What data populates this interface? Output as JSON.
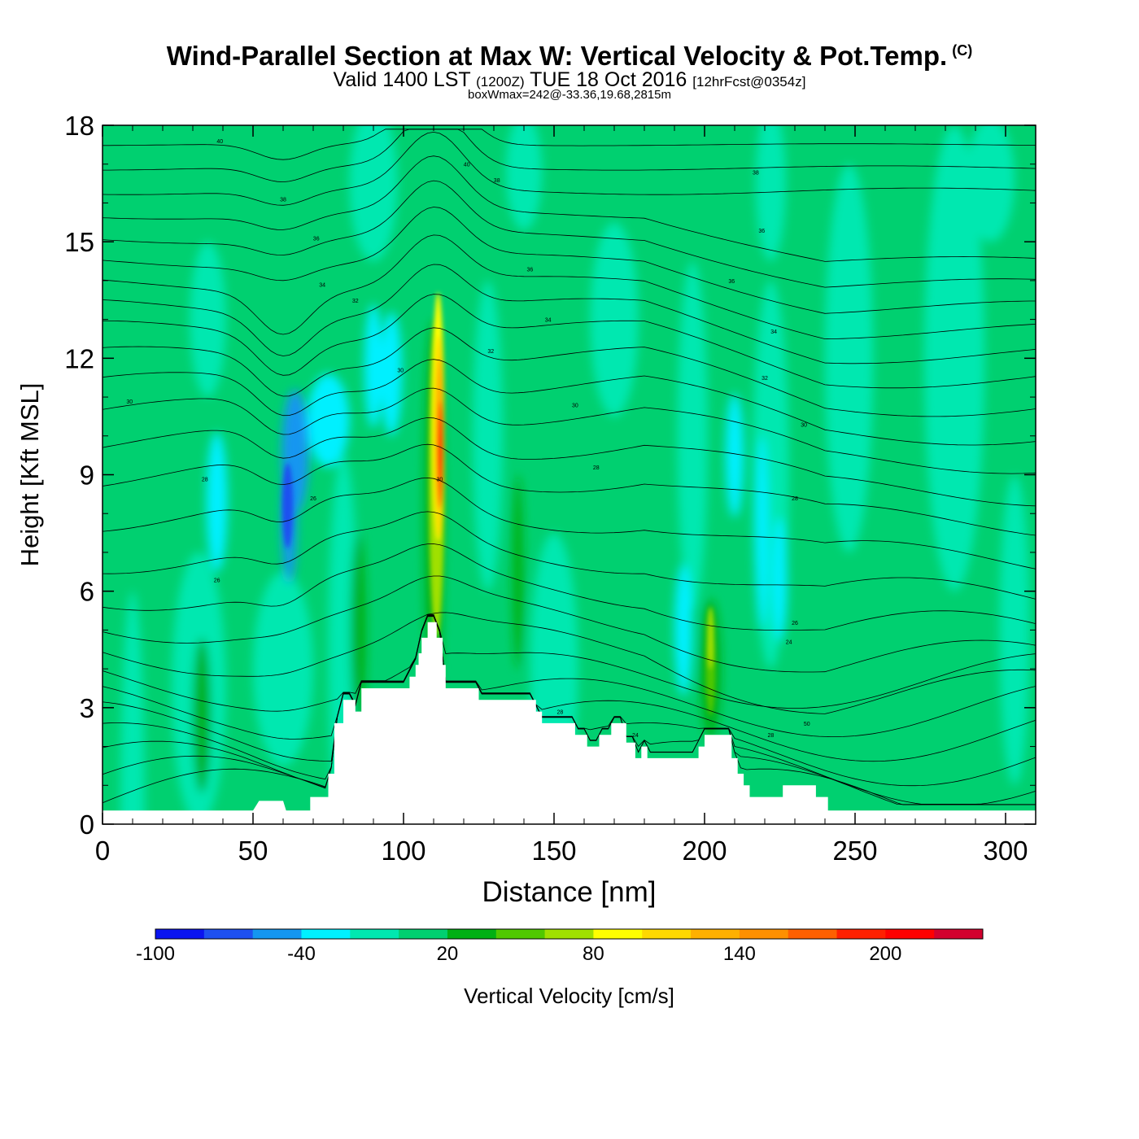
{
  "header": {
    "title": "Wind-Parallel Section at Max W: Vertical Velocity & Pot.Temp.",
    "copyright_mark": "(C)",
    "valid_prefix": "Valid 1400 LST",
    "valid_utc": "(1200Z)",
    "valid_date": "TUE 18 Oct 2016",
    "forecast_info": "[12hrFcst@0354z]",
    "box_info": "boxWmax=242@-33.36,19.68,2815m"
  },
  "chart_data": {
    "type": "heatmap",
    "title": "Wind-Parallel Section at Max W: Vertical Velocity & Pot.Temp.",
    "xlabel": "Distance [nm]",
    "ylabel": "Height [Kft MSL]",
    "xlim": [
      0,
      310
    ],
    "ylim": [
      0,
      18
    ],
    "xticks": [
      0,
      50,
      100,
      150,
      200,
      250,
      300
    ],
    "yticks": [
      0,
      3,
      6,
      9,
      12,
      15,
      18
    ],
    "colorbar": {
      "label": "Vertical Velocity [cm/s]",
      "min": -100,
      "step": 20,
      "colors": [
        "#0a14f0",
        "#1e50f0",
        "#1496f0",
        "#00f0ff",
        "#00e8b0",
        "#00d070",
        "#00b014",
        "#50c800",
        "#a0e000",
        "#ffff00",
        "#ffd800",
        "#ffb000",
        "#ff9000",
        "#ff6000",
        "#ff2000",
        "#ff0000",
        "#d2002e"
      ],
      "tick_labels": [
        "-100",
        "-40",
        "20",
        "80",
        "140",
        "200"
      ],
      "tick_values": [
        -100,
        -40,
        20,
        80,
        140,
        200
      ]
    },
    "max_w": 242,
    "max_w_location": "-33.36,19.68,2815m",
    "terrain_height_kft": [
      [
        0,
        0.35
      ],
      [
        50,
        0.35
      ],
      [
        52,
        0.6
      ],
      [
        60,
        0.6
      ],
      [
        61,
        0.35
      ],
      [
        69,
        0.35
      ],
      [
        69,
        0.7
      ],
      [
        75,
        0.7
      ],
      [
        75,
        1.3
      ],
      [
        77,
        1.3
      ],
      [
        77,
        2.6
      ],
      [
        80,
        2.6
      ],
      [
        80,
        3.2
      ],
      [
        84,
        3.2
      ],
      [
        84,
        2.9
      ],
      [
        86,
        2.9
      ],
      [
        86,
        3.5
      ],
      [
        102,
        3.5
      ],
      [
        102,
        3.8
      ],
      [
        104,
        3.8
      ],
      [
        104,
        4.1
      ],
      [
        105,
        4.1
      ],
      [
        105,
        4.4
      ],
      [
        106,
        4.4
      ],
      [
        106,
        4.8
      ],
      [
        108,
        4.8
      ],
      [
        108,
        5.2
      ],
      [
        111,
        5.2
      ],
      [
        111,
        4.8
      ],
      [
        113,
        4.8
      ],
      [
        113,
        4.1
      ],
      [
        114,
        4.1
      ],
      [
        114,
        3.5
      ],
      [
        125,
        3.5
      ],
      [
        125,
        3.2
      ],
      [
        144,
        3.2
      ],
      [
        144,
        2.9
      ],
      [
        146,
        2.9
      ],
      [
        146,
        2.6
      ],
      [
        157,
        2.6
      ],
      [
        157,
        2.3
      ],
      [
        161,
        2.3
      ],
      [
        161,
        2.0
      ],
      [
        165,
        2.0
      ],
      [
        165,
        2.3
      ],
      [
        169,
        2.3
      ],
      [
        169,
        2.6
      ],
      [
        174,
        2.6
      ],
      [
        174,
        2.1
      ],
      [
        177,
        2.1
      ],
      [
        177,
        1.7
      ],
      [
        179,
        1.7
      ],
      [
        179,
        2.0
      ],
      [
        181,
        2.0
      ],
      [
        181,
        1.7
      ],
      [
        198,
        1.7
      ],
      [
        198,
        2.0
      ],
      [
        200,
        2.0
      ],
      [
        200,
        2.3
      ],
      [
        209,
        2.3
      ],
      [
        209,
        1.7
      ],
      [
        211,
        1.7
      ],
      [
        211,
        1.3
      ],
      [
        213,
        1.3
      ],
      [
        213,
        1.0
      ],
      [
        215,
        1.0
      ],
      [
        215,
        0.7
      ],
      [
        226,
        0.7
      ],
      [
        226,
        1.0
      ],
      [
        237,
        1.0
      ],
      [
        237,
        0.7
      ],
      [
        241,
        0.7
      ],
      [
        241,
        0.35
      ],
      [
        310,
        0.35
      ]
    ],
    "isentrope_labels": [
      {
        "x": 39,
        "y": 17.6,
        "text": "40"
      },
      {
        "x": 121,
        "y": 17.0,
        "text": "40"
      },
      {
        "x": 131,
        "y": 16.6,
        "text": "38"
      },
      {
        "x": 60,
        "y": 16.1,
        "text": "38"
      },
      {
        "x": 217,
        "y": 16.8,
        "text": "38"
      },
      {
        "x": 71,
        "y": 15.1,
        "text": "36"
      },
      {
        "x": 219,
        "y": 15.3,
        "text": "36"
      },
      {
        "x": 142,
        "y": 14.3,
        "text": "36"
      },
      {
        "x": 73,
        "y": 13.9,
        "text": "34"
      },
      {
        "x": 84,
        "y": 13.5,
        "text": "32"
      },
      {
        "x": 209,
        "y": 14.0,
        "text": "36"
      },
      {
        "x": 148,
        "y": 13.0,
        "text": "34"
      },
      {
        "x": 223,
        "y": 12.7,
        "text": "34"
      },
      {
        "x": 129,
        "y": 12.2,
        "text": "32"
      },
      {
        "x": 99,
        "y": 11.7,
        "text": "30"
      },
      {
        "x": 220,
        "y": 11.5,
        "text": "32"
      },
      {
        "x": 9,
        "y": 10.9,
        "text": "30"
      },
      {
        "x": 157,
        "y": 10.8,
        "text": "30"
      },
      {
        "x": 233,
        "y": 10.3,
        "text": "30"
      },
      {
        "x": 164,
        "y": 9.2,
        "text": "28"
      },
      {
        "x": 34,
        "y": 8.9,
        "text": "28"
      },
      {
        "x": 112,
        "y": 8.9,
        "text": "30"
      },
      {
        "x": 70,
        "y": 8.4,
        "text": "26"
      },
      {
        "x": 230,
        "y": 8.4,
        "text": "28"
      },
      {
        "x": 38,
        "y": 6.3,
        "text": "26"
      },
      {
        "x": 230,
        "y": 5.2,
        "text": "26"
      },
      {
        "x": 228,
        "y": 4.7,
        "text": "24"
      },
      {
        "x": 152,
        "y": 2.9,
        "text": "28"
      },
      {
        "x": 177,
        "y": 2.3,
        "text": "24"
      },
      {
        "x": 234,
        "y": 2.6,
        "text": "50"
      },
      {
        "x": 222,
        "y": 2.3,
        "text": "28"
      }
    ]
  }
}
